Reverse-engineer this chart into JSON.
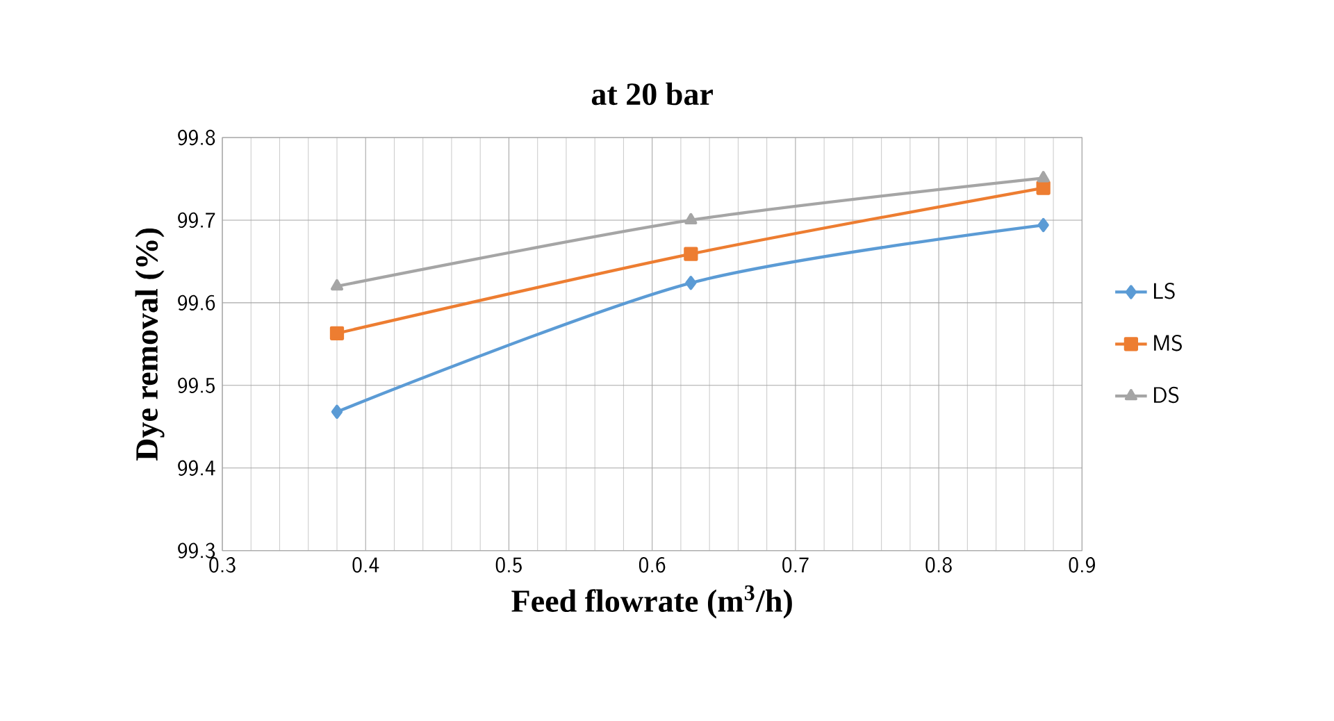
{
  "chart_data": {
    "type": "line",
    "title": "at 20 bar",
    "xlabel": "Feed flowrate (m$^{3}$/h)",
    "ylabel": "Dye removal (%)",
    "xlim": [
      0.3,
      0.9
    ],
    "xticks": [
      0.3,
      0.4,
      0.5,
      0.6,
      0.7,
      0.8,
      0.9
    ],
    "ylim": [
      99.3,
      99.8
    ],
    "yticks": [
      99.3,
      99.4,
      99.5,
      99.6,
      99.7,
      99.8
    ],
    "grid": true,
    "legend": "right",
    "series": [
      {
        "name": "LS",
        "color": "#5b9bd5",
        "marker": "diamond",
        "x": [
          0.38,
          0.627,
          0.873
        ],
        "values": [
          99.468,
          99.624,
          99.694
        ]
      },
      {
        "name": "MS",
        "color": "#ed7d31",
        "marker": "square",
        "x": [
          0.38,
          0.627,
          0.873
        ],
        "values": [
          99.563,
          99.659,
          99.739
        ]
      },
      {
        "name": "DS",
        "color": "#a5a5a5",
        "marker": "triangle",
        "x": [
          0.38,
          0.627,
          0.873
        ],
        "values": [
          99.62,
          99.7,
          99.751
        ]
      }
    ]
  }
}
